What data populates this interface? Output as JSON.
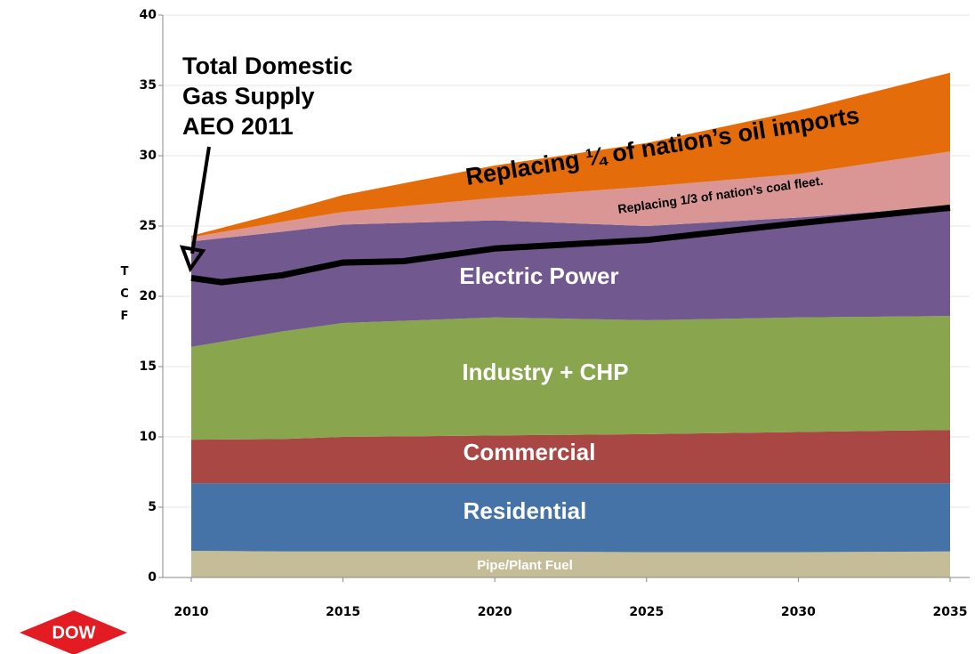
{
  "chart_data": {
    "type": "stacked-area",
    "y_label": "TCF",
    "x": [
      2010,
      2013,
      2015,
      2020,
      2025,
      2030,
      2035
    ],
    "xlim": [
      2010,
      2035
    ],
    "xticks": [
      2010,
      2015,
      2020,
      2025,
      2030,
      2035
    ],
    "ylim": [
      0,
      40
    ],
    "yticks": [
      0,
      5,
      10,
      15,
      20,
      25,
      30,
      35,
      40
    ],
    "grid": true,
    "series": [
      {
        "name": "Pipe/Plant Fuel",
        "color": "#c4bd97",
        "values": [
          1.9,
          1.85,
          1.85,
          1.85,
          1.8,
          1.8,
          1.85
        ]
      },
      {
        "name": "Residential",
        "color": "#4673a7",
        "values": [
          4.8,
          4.85,
          4.85,
          4.85,
          4.9,
          4.9,
          4.85
        ]
      },
      {
        "name": "Commercial",
        "color": "#a84744",
        "values": [
          3.1,
          3.15,
          3.3,
          3.4,
          3.5,
          3.65,
          3.8
        ]
      },
      {
        "name": "Industry + CHP",
        "color": "#89a54e",
        "values": [
          6.6,
          7.65,
          8.1,
          8.4,
          8.1,
          8.15,
          8.1
        ]
      },
      {
        "name": "Electric Power",
        "color": "#71588f",
        "values": [
          7.5,
          7.1,
          7.0,
          6.9,
          6.7,
          7.1,
          7.8
        ]
      },
      {
        "name": "Replacing 1/3 of nation’s coal fleet.",
        "color": "#d99694",
        "values": [
          0.3,
          0.7,
          0.9,
          1.6,
          2.8,
          3.1,
          3.9
        ]
      },
      {
        "name": "Replacing ¼ of nation’s oil imports",
        "color": "#e46c0a",
        "values": [
          0.1,
          0.7,
          1.2,
          2.3,
          3.1,
          4.5,
          5.6
        ]
      }
    ],
    "supply": {
      "label": [
        "Total Domestic",
        "Gas Supply",
        "AEO 2011"
      ],
      "color": "#000000",
      "x": [
        2010,
        2011,
        2013,
        2015,
        2017,
        2020,
        2025,
        2030,
        2035
      ],
      "values": [
        21.3,
        21.0,
        21.5,
        22.4,
        22.5,
        23.4,
        24.0,
        25.2,
        26.3
      ]
    },
    "logo": "DOW"
  }
}
